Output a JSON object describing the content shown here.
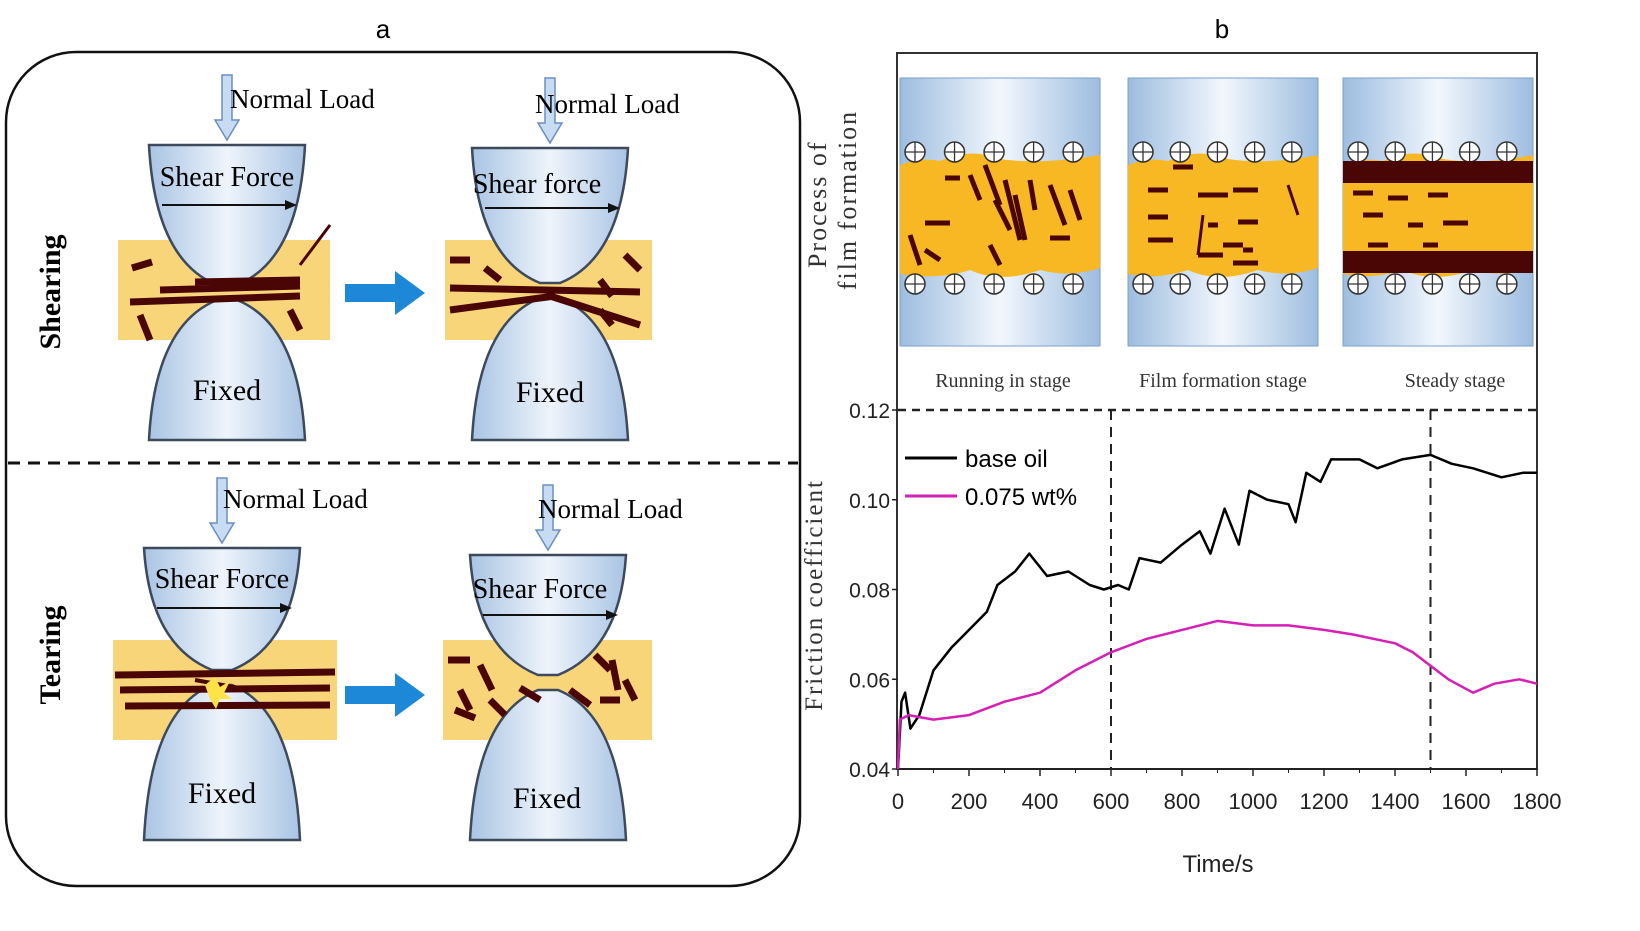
{
  "panel_a": {
    "label": "a",
    "rows": [
      {
        "name": "Shearing",
        "before": {
          "load": "Normal Load",
          "force": "Shear Force",
          "fixed": "Fixed"
        },
        "after": {
          "load": "Normal Load",
          "force": "Shear force",
          "fixed": "Fixed"
        }
      },
      {
        "name": "Tearing",
        "before": {
          "load": "Normal Load",
          "force": "Shear Force",
          "fixed": "Fixed"
        },
        "after": {
          "load": "Normal Load",
          "force": "Shear Force",
          "fixed": "Fixed"
        }
      }
    ]
  },
  "panel_b": {
    "label": "b",
    "process_label_line1": "Process of",
    "process_label_line2": "film formation",
    "stages": [
      "Running in stage",
      "Film formation stage",
      "Steady stage"
    ]
  },
  "colors": {
    "lubricant": "#f7b824",
    "flake": "#4a0505",
    "contact": "#bcd3ea",
    "base_oil": "#000000",
    "additive": "#d61fb5",
    "arrow": "#1e88d8"
  },
  "chart_data": {
    "type": "line",
    "xlabel": "Time/s",
    "ylabel": "Friction coefficient",
    "xlim": [
      0,
      1800
    ],
    "ylim": [
      0.04,
      0.12
    ],
    "xticks": [
      "0",
      "200",
      "400",
      "600",
      "800",
      "1000",
      "1200",
      "1400",
      "1600",
      "1800"
    ],
    "yticks": [
      "0.04",
      "0.06",
      "0.08",
      "0.10",
      "0.12"
    ],
    "stage_boundaries": [
      600,
      1500
    ],
    "legend_position": "top-left",
    "series": [
      {
        "name": "base oil",
        "color": "#000000",
        "x": [
          0,
          10,
          20,
          35,
          60,
          100,
          150,
          200,
          250,
          280,
          330,
          370,
          420,
          480,
          540,
          580,
          620,
          650,
          680,
          740,
          800,
          850,
          880,
          920,
          960,
          990,
          1040,
          1100,
          1120,
          1150,
          1190,
          1220,
          1300,
          1350,
          1420,
          1500,
          1560,
          1620,
          1700,
          1760,
          1800
        ],
        "y": [
          0.04,
          0.055,
          0.057,
          0.049,
          0.052,
          0.062,
          0.067,
          0.071,
          0.075,
          0.081,
          0.084,
          0.088,
          0.083,
          0.084,
          0.081,
          0.08,
          0.081,
          0.08,
          0.087,
          0.086,
          0.09,
          0.093,
          0.088,
          0.098,
          0.09,
          0.102,
          0.1,
          0.099,
          0.095,
          0.106,
          0.104,
          0.109,
          0.109,
          0.107,
          0.109,
          0.11,
          0.108,
          0.107,
          0.105,
          0.106,
          0.106
        ]
      },
      {
        "name": "0.075 wt%",
        "color": "#d61fb5",
        "x": [
          0,
          5,
          30,
          100,
          200,
          300,
          400,
          500,
          600,
          700,
          800,
          900,
          1000,
          1100,
          1200,
          1280,
          1400,
          1450,
          1500,
          1550,
          1620,
          1680,
          1750,
          1800
        ],
        "y": [
          0.04,
          0.051,
          0.052,
          0.051,
          0.052,
          0.055,
          0.057,
          0.062,
          0.066,
          0.069,
          0.071,
          0.073,
          0.072,
          0.072,
          0.071,
          0.07,
          0.068,
          0.066,
          0.063,
          0.06,
          0.057,
          0.059,
          0.06,
          0.059
        ]
      }
    ]
  }
}
